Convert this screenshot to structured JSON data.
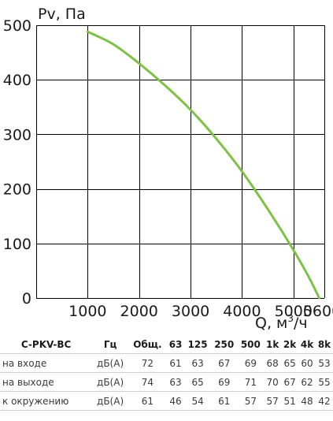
{
  "chart_data": {
    "type": "line",
    "ylabel": "Pv, Па",
    "xlabel_main": "Q, м",
    "xlabel_sup": "3",
    "xlabel_tail": "/ч",
    "xlim": [
      0,
      5600
    ],
    "ylim": [
      0,
      500
    ],
    "x_ticks": [
      1000,
      2000,
      3000,
      4000,
      5000,
      5600
    ],
    "y_ticks": [
      0,
      100,
      200,
      300,
      400,
      500
    ],
    "x_tick_labels": [
      "1000",
      "2000",
      "3000",
      "4000",
      "5000",
      "5600"
    ],
    "y_tick_labels": [
      "0",
      "100",
      "200",
      "300",
      "400",
      "500"
    ],
    "grid": true,
    "line_color": "#7dc242",
    "series": [
      {
        "x": [
          1000,
          1500,
          2000,
          2500,
          3000,
          3500,
          4000,
          4500,
          5000,
          5300,
          5500
        ],
        "y": [
          488,
          465,
          430,
          390,
          345,
          292,
          232,
          163,
          88,
          38,
          0
        ]
      }
    ]
  },
  "table": {
    "headers": [
      "C-PKV-BC",
      "Гц",
      "Общ.",
      "63",
      "125",
      "250",
      "500",
      "1k",
      "2k",
      "4k",
      "8k"
    ],
    "rows": [
      [
        "на входе",
        "дБ(А)",
        "72",
        "61",
        "63",
        "67",
        "69",
        "68",
        "65",
        "60",
        "53"
      ],
      [
        "на выходе",
        "дБ(А)",
        "74",
        "63",
        "65",
        "69",
        "71",
        "70",
        "67",
        "62",
        "55"
      ],
      [
        "к окружению",
        "дБ(А)",
        "61",
        "46",
        "54",
        "61",
        "57",
        "57",
        "51",
        "48",
        "42"
      ]
    ]
  }
}
